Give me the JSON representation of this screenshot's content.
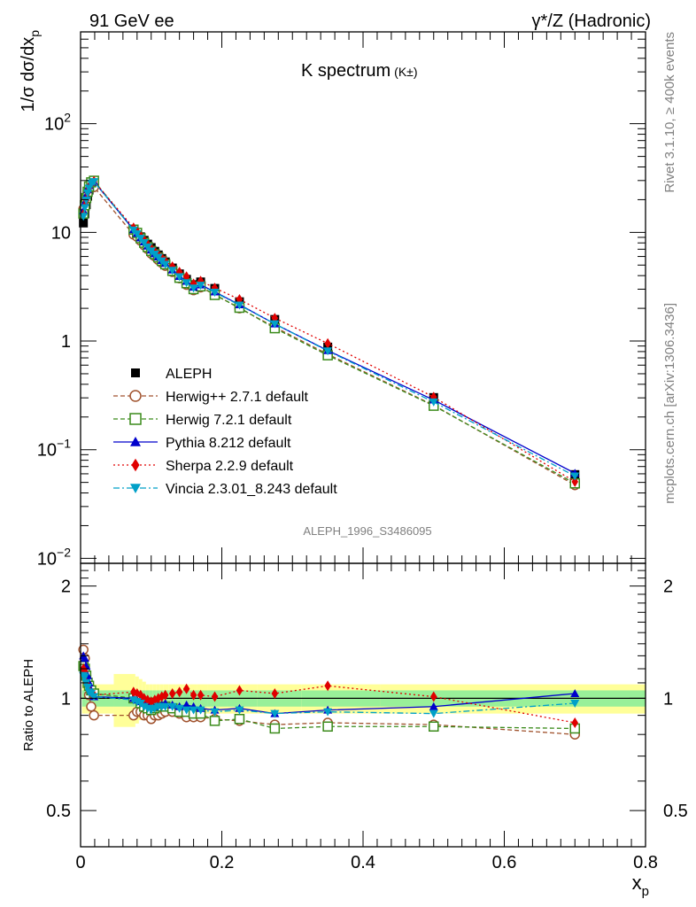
{
  "header": {
    "left": "91 GeV ee",
    "right": "γ*/Z (Hadronic)"
  },
  "title": "K spectrum",
  "title_sub": "(K±)",
  "side_labels": {
    "rivet": "Rivet 3.1.10, ≥ 400k events",
    "mcplots": "mcplots.cern.ch [arXiv:1306.3436]"
  },
  "analysis_id": "ALEPH_1996_S3486095",
  "axis": {
    "ylabel_main": "1/σ dσ/dx",
    "ylabel_main_sub": "p",
    "ylabel_ratio": "Ratio to ALEPH",
    "xlabel": "x",
    "xlabel_sub": "p",
    "main_yticks": [
      {
        "v": 0.01,
        "base": "10",
        "exp": "−2"
      },
      {
        "v": 0.1,
        "base": "10",
        "exp": "−1"
      },
      {
        "v": 1,
        "base": "1",
        "exp": ""
      },
      {
        "v": 10,
        "base": "10",
        "exp": ""
      },
      {
        "v": 100,
        "base": "10",
        "exp": "2"
      }
    ],
    "ratio_yticks": [
      "0.5",
      "1",
      "2"
    ],
    "xticks": [
      "0",
      "0.2",
      "0.4",
      "0.6",
      "0.8"
    ]
  },
  "chart_data": {
    "type": "line",
    "title": "K spectrum (K±)",
    "xlabel": "x_p",
    "ylabel": "1/σ dσ/dx_p",
    "yscale": "log",
    "xlim": [
      0,
      0.8
    ],
    "ylim": [
      0.009,
      700
    ],
    "ratio_ylim": [
      0.4,
      2.3
    ],
    "x": [
      0.004,
      0.006,
      0.008,
      0.01,
      0.012,
      0.015,
      0.019,
      0.075,
      0.08,
      0.085,
      0.09,
      0.095,
      0.1,
      0.105,
      0.11,
      0.115,
      0.12,
      0.13,
      0.14,
      0.15,
      0.16,
      0.17,
      0.19,
      0.225,
      0.275,
      0.35,
      0.5,
      0.7
    ],
    "data": {
      "name": "ALEPH",
      "values": [
        12.2,
        14.8,
        18.0,
        21.5,
        24.5,
        27.5,
        29.0,
        10.6,
        9.9,
        9.1,
        8.45,
        7.8,
        7.25,
        6.7,
        6.2,
        5.75,
        5.35,
        4.7,
        4.15,
        3.7,
        3.3,
        3.5,
        3.05,
        2.3,
        1.58,
        0.88,
        0.302,
        0.059
      ],
      "uncertainty_inner": 0.05,
      "uncertainty_outer": 0.09
    },
    "series": [
      {
        "name": "Herwig++ 2.7.1 default",
        "color": "#a0522d",
        "marker": "circle-open",
        "dash": "5,3",
        "ratio": [
          1.35,
          1.28,
          1.15,
          1.1,
          1.02,
          0.95,
          0.9,
          0.9,
          0.92,
          0.92,
          0.9,
          0.9,
          0.88,
          0.9,
          0.9,
          0.91,
          0.92,
          0.92,
          0.91,
          0.89,
          0.89,
          0.89,
          0.88,
          0.87,
          0.85,
          0.86,
          0.85,
          0.8
        ]
      },
      {
        "name": "Herwig 7.2.1 default",
        "color": "#3a8a1a",
        "marker": "square-open",
        "dash": "5,3",
        "ratio": [
          1.22,
          1.2,
          1.15,
          1.1,
          1.08,
          1.05,
          1.03,
          1.0,
          1.0,
          0.97,
          0.95,
          0.94,
          0.93,
          0.94,
          0.95,
          0.95,
          0.95,
          0.94,
          0.92,
          0.92,
          0.91,
          0.91,
          0.87,
          0.88,
          0.83,
          0.84,
          0.84,
          0.83
        ]
      },
      {
        "name": "Pythia 8.212 default",
        "color": "#0000cc",
        "marker": "triangle-up",
        "dash": "",
        "ratio": [
          1.3,
          1.28,
          1.22,
          1.15,
          1.1,
          1.05,
          1.01,
          1.0,
          0.99,
          0.98,
          0.97,
          0.96,
          0.95,
          0.95,
          0.96,
          0.96,
          0.97,
          0.96,
          0.95,
          0.96,
          0.95,
          0.94,
          0.93,
          0.94,
          0.91,
          0.93,
          0.95,
          1.03
        ]
      },
      {
        "name": "Sherpa 2.2.9 default",
        "color": "#e00000",
        "marker": "diamond",
        "dash": "2,3",
        "ratio": [
          1.2,
          1.18,
          1.1,
          1.08,
          1.05,
          1.03,
          1.02,
          1.04,
          1.03,
          1.02,
          1.0,
          0.99,
          0.98,
          0.99,
          1.0,
          1.01,
          1.02,
          1.03,
          1.04,
          1.06,
          1.02,
          1.02,
          1.01,
          1.05,
          1.03,
          1.08,
          1.01,
          0.86
        ]
      },
      {
        "name": "Vincia 2.3.01_8.243 default",
        "color": "#00a0c8",
        "marker": "triangle-down",
        "dash": "7,3,2,3",
        "ratio": [
          1.15,
          1.14,
          1.1,
          1.07,
          1.04,
          1.03,
          1.01,
          0.99,
          0.98,
          0.97,
          0.95,
          0.94,
          0.93,
          0.94,
          0.95,
          0.95,
          0.95,
          0.95,
          0.94,
          0.93,
          0.93,
          0.93,
          0.92,
          0.93,
          0.91,
          0.92,
          0.91,
          0.97
        ]
      }
    ]
  }
}
